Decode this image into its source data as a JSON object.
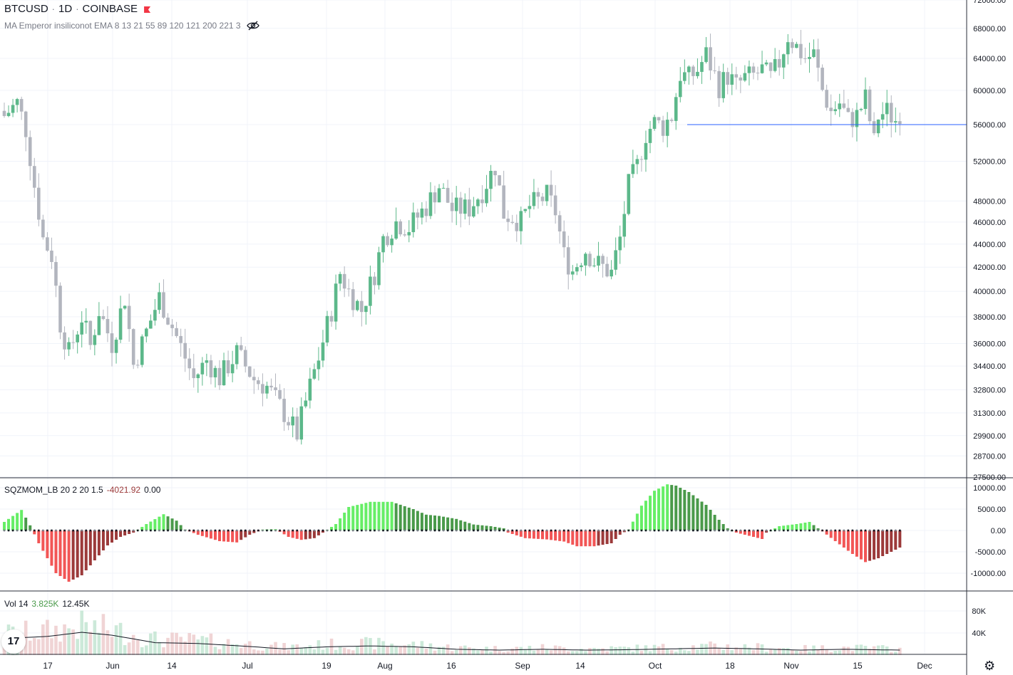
{
  "header": {
    "symbol": "BTCUSD",
    "sep1": "·",
    "interval": "1D",
    "sep2": "·",
    "exchange": "COINBASE",
    "indicator": "MA Emperor insiliconot EMA 8 13 21 55 89 120 121 200 221 3"
  },
  "sqz": {
    "name": "SQZMOM_LB 20 2 20 1.5",
    "value": "-4021.92",
    "value2": "0.00"
  },
  "vol": {
    "name": "Vol 14",
    "value": "3.825K",
    "value2": "12.45K"
  },
  "logo_text": "17",
  "icons": {
    "eye": "eye-crossed-icon",
    "flag": "flag-icon",
    "settings": "gear-icon",
    "logo": "tradingview-logo"
  },
  "colors": {
    "up": "#5cb88a",
    "down": "#b2b5be",
    "hline": "#2962ff",
    "mom_lime": "#66ee66",
    "mom_green": "#4a9a4a",
    "mom_red": "#f25555",
    "mom_maroon": "#9c3a3a",
    "zero_dot": "#131722"
  },
  "chart_data": {
    "type": "candlestick",
    "price_axis": [
      "72000.00",
      "68000.00",
      "64000.00",
      "60000.00",
      "56000.00",
      "52000.00",
      "48000.00",
      "46000.00",
      "44000.00",
      "42000.00",
      "40000.00",
      "38000.00",
      "36000.00",
      "34400.00",
      "32800.00",
      "31300.00",
      "29900.00",
      "28700.00",
      "27500.00"
    ],
    "mom_axis": [
      "10000.00",
      "5000.00",
      "0.00",
      "-5000.00",
      "-10000.00"
    ],
    "vol_axis": [
      "80K",
      "40K"
    ],
    "time_axis": [
      "17",
      "Jun",
      "14",
      "Jul",
      "19",
      "Aug",
      "16",
      "Sep",
      "14",
      "Oct",
      "18",
      "Nov",
      "15",
      "Dec"
    ],
    "log_scale": true,
    "hline_price": 56000,
    "close_anchors": [
      [
        0,
        57000
      ],
      [
        3,
        58500
      ],
      [
        5,
        55500
      ],
      [
        7,
        49500
      ],
      [
        9,
        44500
      ],
      [
        11,
        43000
      ],
      [
        13,
        37500
      ],
      [
        15,
        35300
      ],
      [
        18,
        38000
      ],
      [
        20,
        35800
      ],
      [
        22,
        38500
      ],
      [
        25,
        36000
      ],
      [
        28,
        39500
      ],
      [
        30,
        34500
      ],
      [
        32,
        36000
      ],
      [
        36,
        39500
      ],
      [
        40,
        36500
      ],
      [
        44,
        33500
      ],
      [
        47,
        34800
      ],
      [
        50,
        33600
      ],
      [
        54,
        35300
      ],
      [
        58,
        33500
      ],
      [
        61,
        33000
      ],
      [
        65,
        31300
      ],
      [
        68,
        30000
      ],
      [
        70,
        32000
      ],
      [
        73,
        35000
      ],
      [
        76,
        38500
      ],
      [
        78,
        41500
      ],
      [
        80,
        40000
      ],
      [
        83,
        38500
      ],
      [
        86,
        41500
      ],
      [
        88,
        44500
      ],
      [
        91,
        46000
      ],
      [
        94,
        45500
      ],
      [
        98,
        47500
      ],
      [
        101,
        49500
      ],
      [
        104,
        47200
      ],
      [
        108,
        47300
      ],
      [
        111,
        49000
      ],
      [
        114,
        51500
      ],
      [
        116,
        46800
      ],
      [
        118,
        46500
      ],
      [
        120,
        46000
      ],
      [
        122,
        47500
      ],
      [
        126,
        48500
      ],
      [
        128,
        47000
      ],
      [
        130,
        43000
      ],
      [
        132,
        41700
      ],
      [
        135,
        43500
      ],
      [
        137,
        42500
      ],
      [
        139,
        42000
      ],
      [
        141,
        41500
      ],
      [
        143,
        44500
      ],
      [
        145,
        49500
      ],
      [
        147,
        51500
      ],
      [
        149,
        55000
      ],
      [
        151,
        56200
      ],
      [
        153,
        55800
      ],
      [
        155,
        57000
      ],
      [
        157,
        62000
      ],
      [
        159,
        61500
      ],
      [
        161,
        62500
      ],
      [
        163,
        64500
      ],
      [
        166,
        60500
      ],
      [
        168,
        61800
      ],
      [
        170,
        60500
      ],
      [
        172,
        61500
      ],
      [
        174,
        61800
      ],
      [
        176,
        62500
      ],
      [
        178,
        61500
      ],
      [
        180,
        63500
      ],
      [
        182,
        67000
      ],
      [
        184,
        65500
      ],
      [
        186,
        64000
      ],
      [
        188,
        64500
      ],
      [
        190,
        60000
      ],
      [
        192,
        57500
      ],
      [
        194,
        58500
      ],
      [
        196,
        56500
      ],
      [
        198,
        57000
      ],
      [
        200,
        59000
      ],
      [
        202,
        54000
      ],
      [
        203,
        57000
      ],
      [
        205,
        57500
      ],
      [
        207,
        56500
      ],
      [
        208,
        57500
      ]
    ],
    "momentum_anchors": [
      [
        0,
        2000
      ],
      [
        4,
        4800
      ],
      [
        6,
        1200
      ],
      [
        8,
        -3000
      ],
      [
        12,
        -10000
      ],
      [
        15,
        -12000
      ],
      [
        18,
        -10500
      ],
      [
        21,
        -7000
      ],
      [
        24,
        -3500
      ],
      [
        27,
        -1500
      ],
      [
        30,
        -500
      ],
      [
        33,
        1500
      ],
      [
        37,
        3800
      ],
      [
        40,
        2300
      ],
      [
        42,
        200
      ],
      [
        45,
        -1000
      ],
      [
        50,
        -2500
      ],
      [
        54,
        -2800
      ],
      [
        57,
        -1000
      ],
      [
        60,
        200
      ],
      [
        63,
        300
      ],
      [
        66,
        -1500
      ],
      [
        69,
        -2200
      ],
      [
        72,
        -1800
      ],
      [
        74,
        -500
      ],
      [
        77,
        1500
      ],
      [
        80,
        5500
      ],
      [
        85,
        6700
      ],
      [
        90,
        6700
      ],
      [
        95,
        5000
      ],
      [
        98,
        3700
      ],
      [
        101,
        3400
      ],
      [
        105,
        2700
      ],
      [
        109,
        1400
      ],
      [
        113,
        1000
      ],
      [
        116,
        500
      ],
      [
        117,
        -500
      ],
      [
        121,
        -1800
      ],
      [
        126,
        -2100
      ],
      [
        130,
        -2600
      ],
      [
        133,
        -3700
      ],
      [
        137,
        -3700
      ],
      [
        141,
        -3000
      ],
      [
        143,
        -1000
      ],
      [
        145,
        200
      ],
      [
        148,
        5800
      ],
      [
        151,
        9300
      ],
      [
        154,
        10800
      ],
      [
        156,
        10500
      ],
      [
        159,
        9000
      ],
      [
        163,
        6000
      ],
      [
        166,
        2500
      ],
      [
        168,
        500
      ],
      [
        170,
        -500
      ],
      [
        174,
        -1500
      ],
      [
        176,
        -2000
      ],
      [
        177,
        -500
      ],
      [
        180,
        1000
      ],
      [
        184,
        1500
      ],
      [
        187,
        2000
      ],
      [
        189,
        500
      ],
      [
        190,
        -200
      ],
      [
        193,
        -2500
      ],
      [
        197,
        -5500
      ],
      [
        200,
        -7400
      ],
      [
        203,
        -6500
      ],
      [
        206,
        -5000
      ],
      [
        208,
        -4000
      ]
    ],
    "volume_anchors": [
      [
        0,
        40
      ],
      [
        10,
        45
      ],
      [
        18,
        55
      ],
      [
        25,
        48
      ],
      [
        35,
        30
      ],
      [
        45,
        28
      ],
      [
        55,
        22
      ],
      [
        65,
        15
      ],
      [
        75,
        20
      ],
      [
        85,
        22
      ],
      [
        95,
        20
      ],
      [
        105,
        14
      ],
      [
        115,
        12
      ],
      [
        125,
        14
      ],
      [
        135,
        12
      ],
      [
        145,
        13
      ],
      [
        155,
        15
      ],
      [
        165,
        17
      ],
      [
        175,
        15
      ],
      [
        185,
        12
      ],
      [
        195,
        14
      ],
      [
        208,
        12
      ]
    ],
    "series": [
      {
        "name": "BTCUSD"
      },
      {
        "name": "SQZMOM_LB"
      },
      {
        "name": "Vol 14"
      }
    ]
  }
}
